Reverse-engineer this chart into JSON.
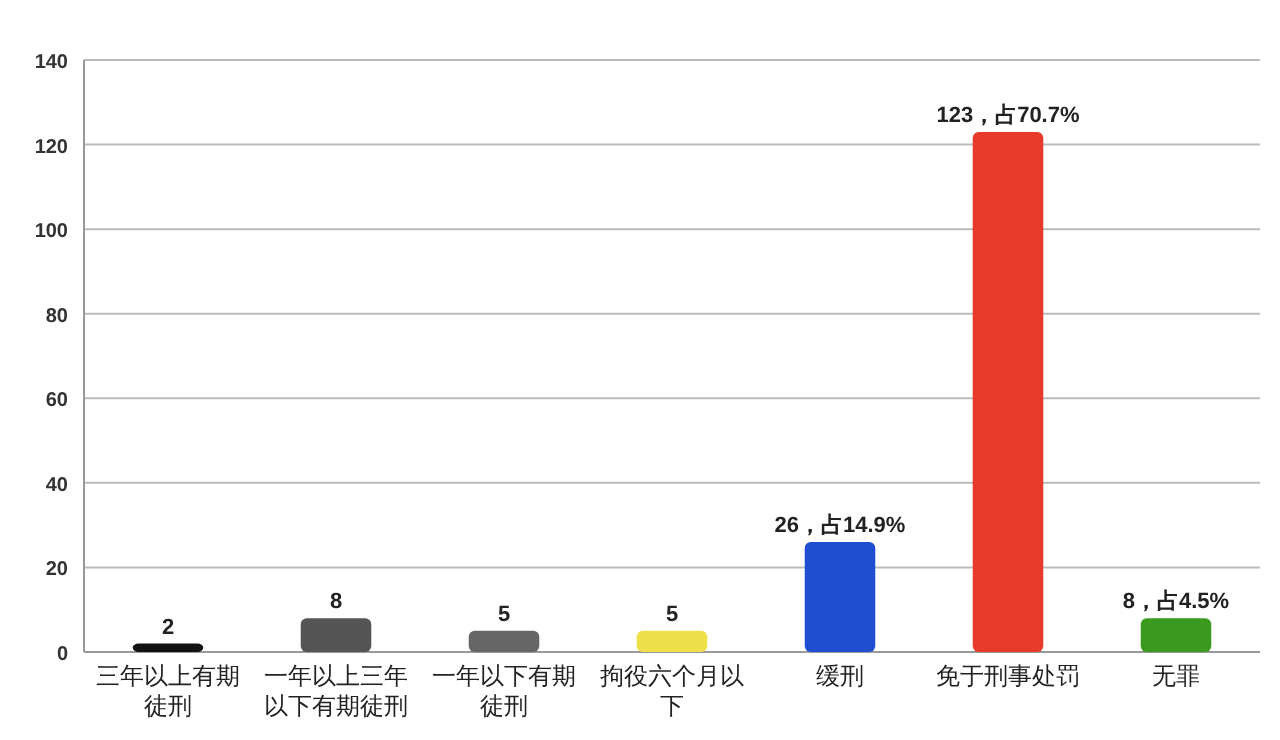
{
  "chart_data": {
    "type": "bar",
    "categories": [
      "三年以上有期徒刑",
      "一年以上三年以下有期徒刑",
      "一年以下有期徒刑",
      "拘役六个月以下",
      "缓刑",
      "免于刑事处罚",
      "无罪"
    ],
    "values": [
      2,
      8,
      5,
      5,
      26,
      123,
      8
    ],
    "colors": [
      "#111111",
      "#555555",
      "#666666",
      "#eee04a",
      "#1f4fd0",
      "#e83a2a",
      "#3a9a20"
    ],
    "value_labels": [
      "2",
      "8",
      "5",
      "5",
      "26，占14.9%",
      "123，占70.7%",
      "8，占4.5%"
    ],
    "ylim": [
      0,
      140
    ],
    "yticks": [
      0,
      20,
      40,
      60,
      80,
      100,
      120,
      140
    ],
    "grid": "y"
  }
}
